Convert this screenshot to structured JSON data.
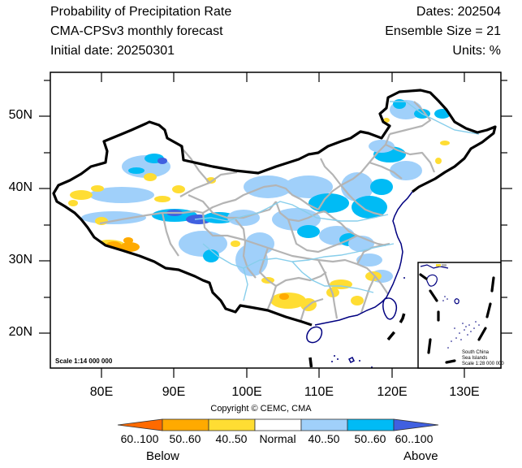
{
  "header": {
    "title": "Probability of Precipitation Rate",
    "model": "CMA-CPSv3 monthly forecast",
    "initial_date": "Initial date: 20250301",
    "dates": "Dates: 202504",
    "ensemble": "Ensemble Size = 21",
    "units": "Units: %"
  },
  "map": {
    "lon_labels": [
      "80E",
      "90E",
      "100E",
      "110E",
      "120E",
      "130E"
    ],
    "lat_labels": [
      "50N",
      "40N",
      "30N",
      "20N"
    ],
    "scale_text": "Scale 1:14 000 000",
    "inset": {
      "title_line1": "South China",
      "title_line2": "Sea Islands",
      "scale_text": "Scale 1:28 000 000"
    }
  },
  "copyright": "Copyright © CEMC, CMA",
  "colorbar": {
    "categories": [
      {
        "label": "60..100",
        "color": "#ff6a00",
        "side": "below"
      },
      {
        "label": "50..60",
        "color": "#ffaa00",
        "side": "below"
      },
      {
        "label": "40..50",
        "color": "#ffdd33",
        "side": "below"
      },
      {
        "label": "Normal",
        "color": "#ffffff",
        "side": "normal"
      },
      {
        "label": "40..50",
        "color": "#a0d0fa",
        "side": "above"
      },
      {
        "label": "50..60",
        "color": "#00bbf5",
        "side": "above"
      },
      {
        "label": "60..100",
        "color": "#4060e0",
        "side": "above"
      }
    ],
    "below_label": "Below",
    "above_label": "Above"
  },
  "colors": {
    "border": "#000000",
    "province": "#b4b4b4",
    "river": "#87ceeb",
    "coast": "#000080"
  }
}
